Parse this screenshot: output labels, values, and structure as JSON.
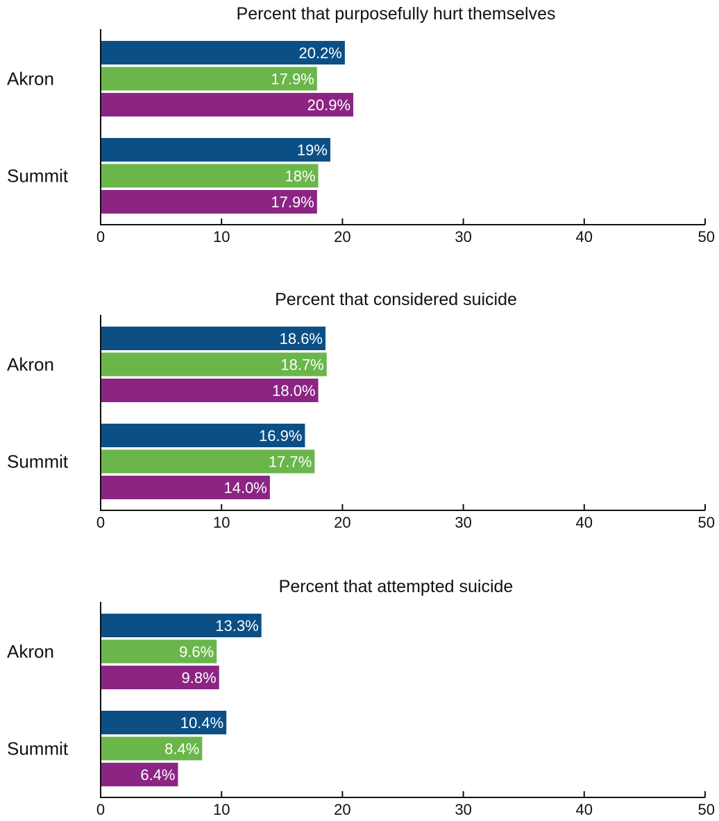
{
  "colors": {
    "series_1": "#0b4f85",
    "series_2": "#6ab64b",
    "series_3": "#8c2484"
  },
  "chart_data": [
    {
      "type": "bar",
      "orientation": "horizontal",
      "title": "Percent that purposefully hurt themselves",
      "categories": [
        "Akron",
        "Summit"
      ],
      "series": [
        {
          "values": [
            20.2,
            19
          ],
          "labels": [
            "20.2%",
            "19%"
          ]
        },
        {
          "values": [
            17.9,
            18
          ],
          "labels": [
            "17.9%",
            "18%"
          ]
        },
        {
          "values": [
            20.9,
            17.9
          ],
          "labels": [
            "20.9%",
            "17.9%"
          ]
        }
      ],
      "xlim": [
        0,
        50
      ],
      "xticks": [
        "0",
        "10",
        "20",
        "30",
        "40",
        "50"
      ],
      "grid": false,
      "legend": "none"
    },
    {
      "type": "bar",
      "orientation": "horizontal",
      "title": "Percent that considered suicide",
      "categories": [
        "Akron",
        "Summit"
      ],
      "series": [
        {
          "values": [
            18.6,
            16.9
          ],
          "labels": [
            "18.6%",
            "16.9%"
          ]
        },
        {
          "values": [
            18.7,
            17.7
          ],
          "labels": [
            "18.7%",
            "17.7%"
          ]
        },
        {
          "values": [
            18.0,
            14.0
          ],
          "labels": [
            "18.0%",
            "14.0%"
          ]
        }
      ],
      "xlim": [
        0,
        50
      ],
      "xticks": [
        "0",
        "10",
        "20",
        "30",
        "40",
        "50"
      ],
      "grid": false,
      "legend": "none"
    },
    {
      "type": "bar",
      "orientation": "horizontal",
      "title": "Percent that attempted suicide",
      "categories": [
        "Akron",
        "Summit"
      ],
      "series": [
        {
          "values": [
            13.3,
            10.4
          ],
          "labels": [
            "13.3%",
            "10.4%"
          ]
        },
        {
          "values": [
            9.6,
            8.4
          ],
          "labels": [
            "9.6%",
            "8.4%"
          ]
        },
        {
          "values": [
            9.8,
            6.4
          ],
          "labels": [
            "9.8%",
            "6.4%"
          ]
        }
      ],
      "xlim": [
        0,
        50
      ],
      "xticks": [
        "0",
        "10",
        "20",
        "30",
        "40",
        "50"
      ],
      "grid": false,
      "legend": "none"
    }
  ]
}
